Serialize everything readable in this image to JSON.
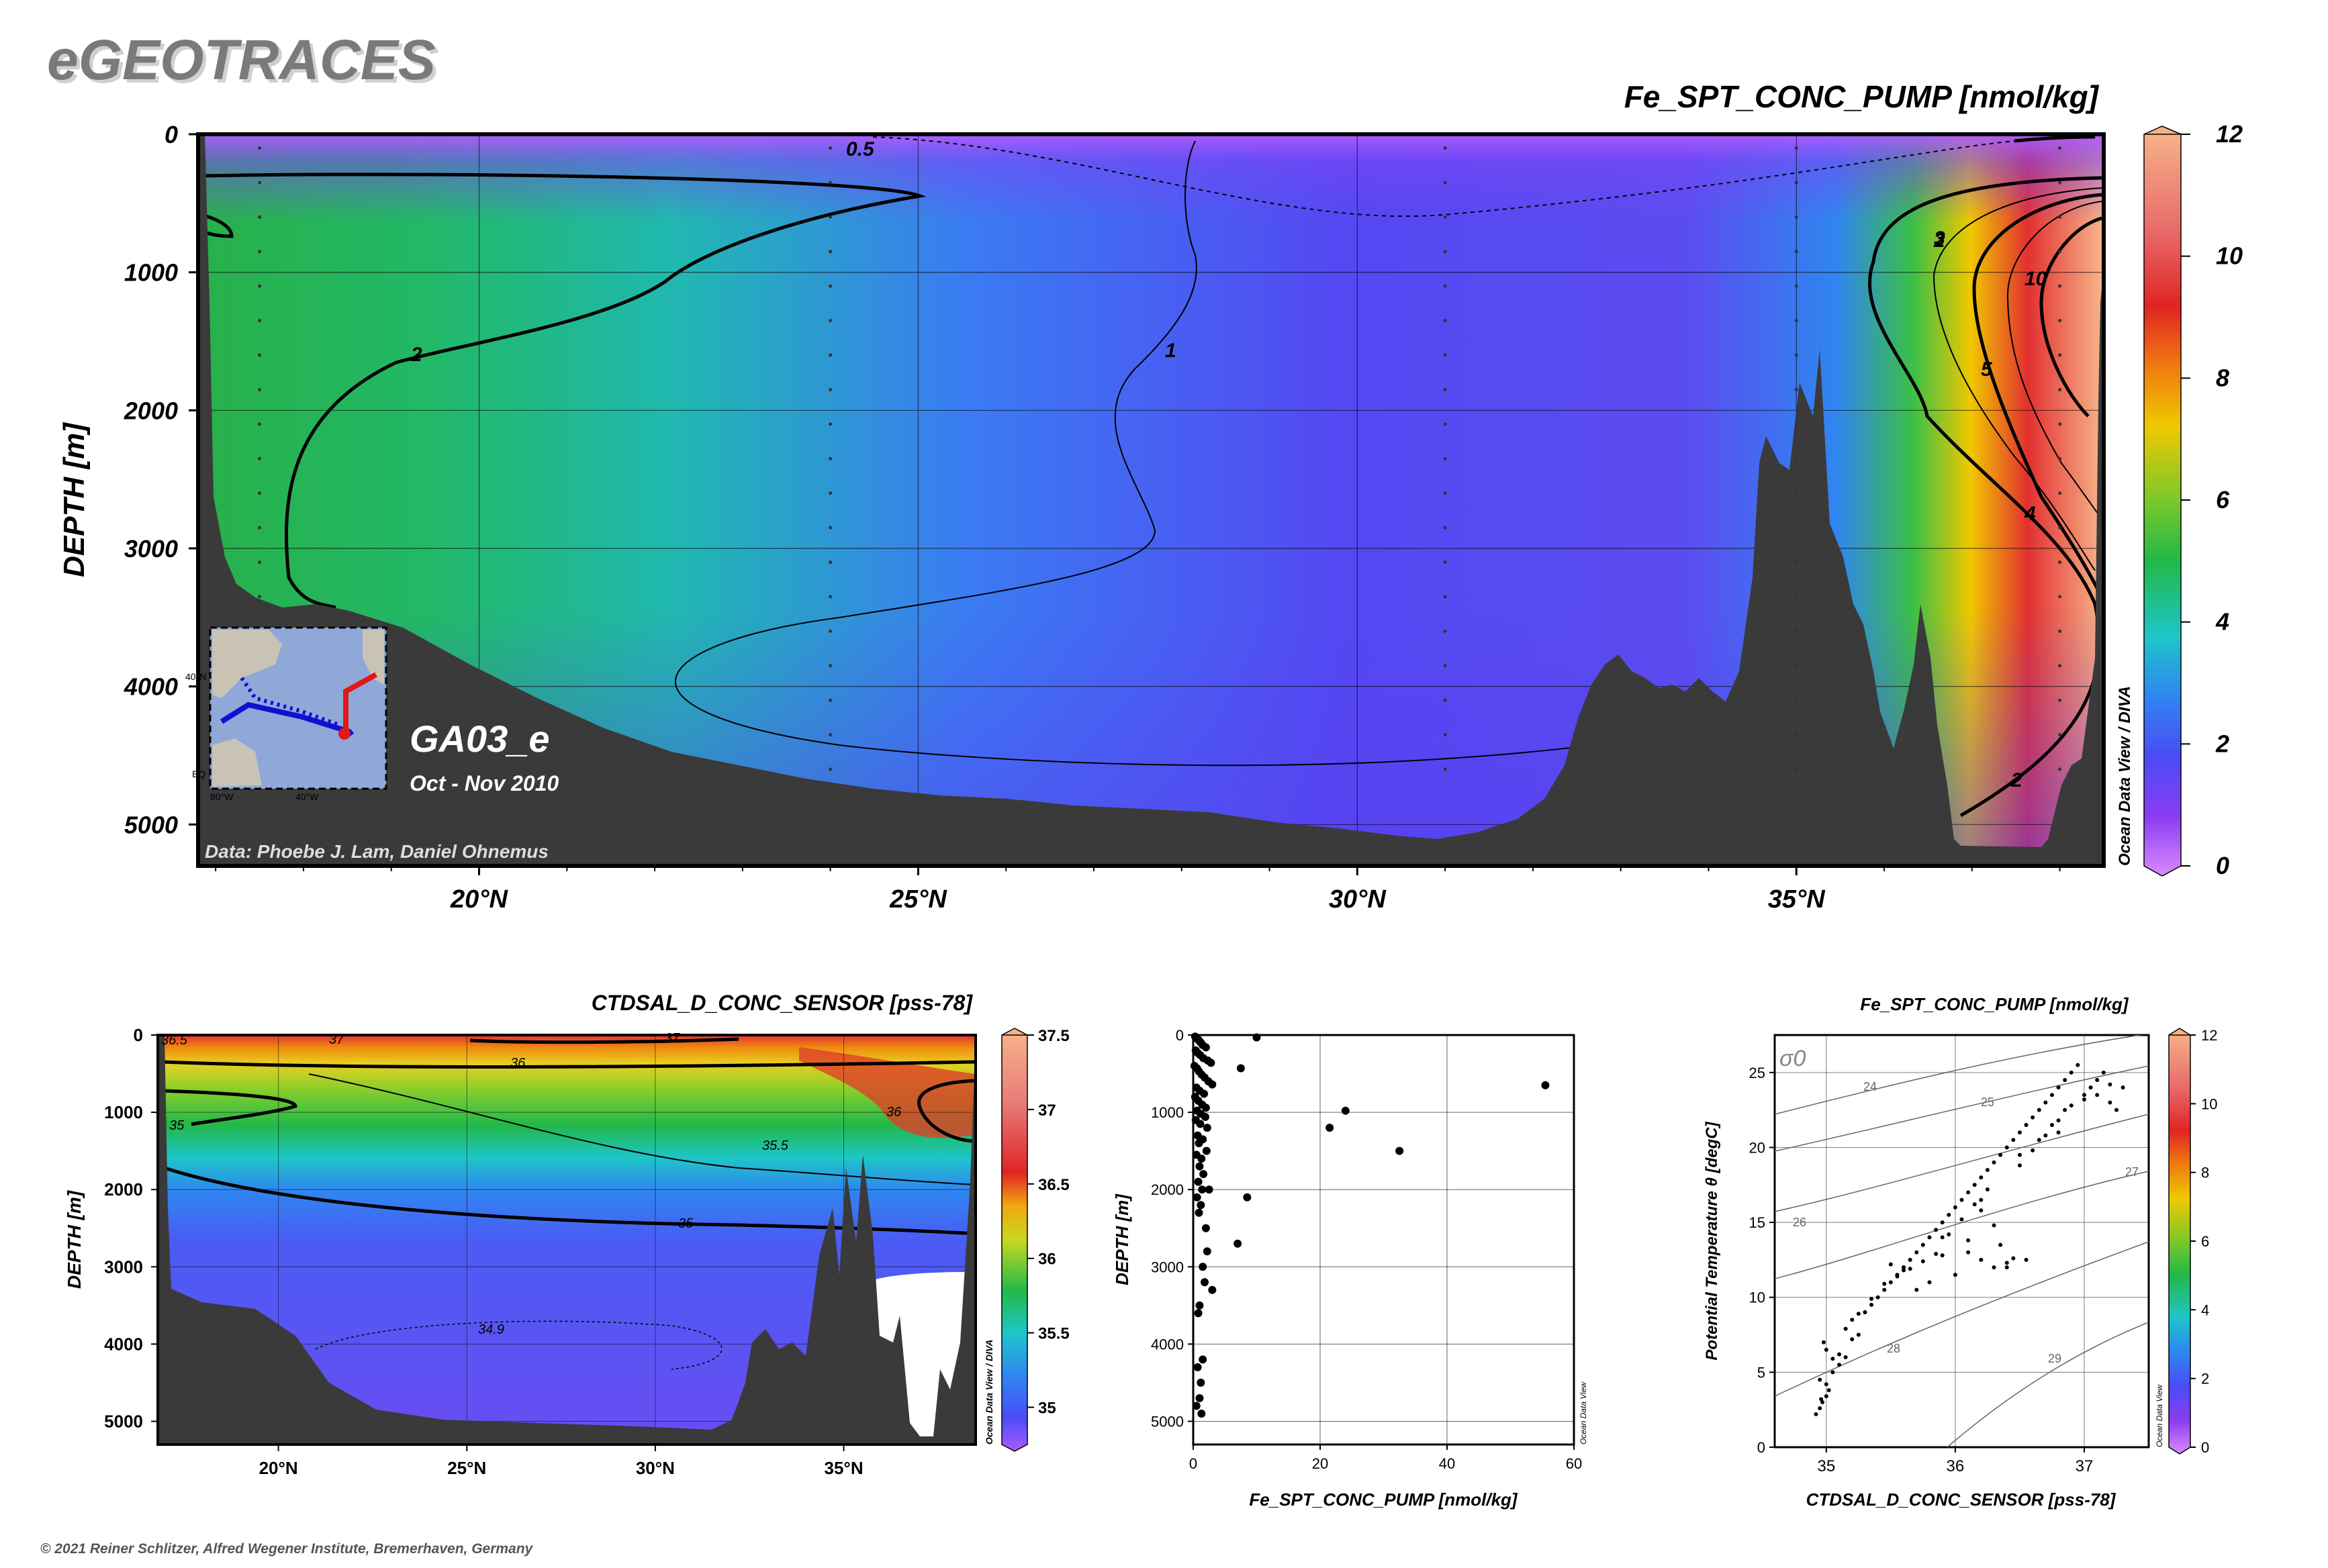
{
  "brand": "eGEOTRACES",
  "copyright": "© 2021 Reiner Schlitzer, Alfred Wegener Institute, Bremerhaven, Germany",
  "odv_credit": "Ocean Data View / DIVA",
  "odv_credit_short": "Ocean Data View",
  "colors": {
    "frame": "#000000",
    "bathymetry": "#3a3a3a",
    "section_line": "#1010d0",
    "section_highlight": "#e01818",
    "map_ocean": "#8fa8d8",
    "map_land": "#c9c3b6"
  },
  "inset_map": {
    "lat_label": "40°N",
    "lat_label_low": "EQ",
    "lon_labels": [
      "80°W",
      "40°W"
    ]
  },
  "chart_data": [
    {
      "id": "main_section",
      "type": "heatmap",
      "title": "Fe_SPT_CONC_PUMP [nmol/kg]",
      "xlabel": "",
      "ylabel": "DEPTH [m]",
      "x_ticks": [
        "20°N",
        "25°N",
        "30°N",
        "35°N"
      ],
      "x_tick_values": [
        20,
        25,
        30,
        35
      ],
      "y_ticks": [
        "0",
        "1000",
        "2000",
        "3000",
        "4000",
        "5000"
      ],
      "y_tick_values": [
        0,
        1000,
        2000,
        3000,
        4000,
        5000
      ],
      "xlim": [
        16.8,
        38.5
      ],
      "ylim": [
        0,
        5300
      ],
      "cruise": "GA03_e",
      "period": "Oct - Nov 2010",
      "data_credit": "Data: Phoebe J. Lam, Daniel Ohnemus",
      "contour_labels": [
        "0.5",
        "1",
        "2",
        "2",
        "2",
        "3",
        "4",
        "5",
        "10"
      ],
      "colorbar": {
        "ticks": [
          "0",
          "2",
          "4",
          "6",
          "8",
          "10",
          "12"
        ],
        "tick_values": [
          0,
          2,
          4,
          6,
          8,
          10,
          12
        ],
        "range": [
          0,
          12
        ]
      }
    },
    {
      "id": "salinity_section",
      "type": "heatmap",
      "title": "CTDSAL_D_CONC_SENSOR [pss-78]",
      "xlabel": "",
      "ylabel": "DEPTH [m]",
      "x_ticks": [
        "20°N",
        "25°N",
        "30°N",
        "35°N"
      ],
      "x_tick_values": [
        20,
        25,
        30,
        35
      ],
      "y_ticks": [
        "0",
        "1000",
        "2000",
        "3000",
        "4000",
        "5000"
      ],
      "y_tick_values": [
        0,
        1000,
        2000,
        3000,
        4000,
        5000
      ],
      "xlim": [
        16.8,
        38.5
      ],
      "ylim": [
        0,
        5300
      ],
      "contour_labels": [
        "36.5",
        "37",
        "37",
        "36",
        "36",
        "35",
        "35.5",
        "35",
        "34.9"
      ],
      "colorbar": {
        "ticks": [
          "35",
          "35.5",
          "36",
          "36.5",
          "37",
          "37.5"
        ],
        "tick_values": [
          35,
          35.5,
          36,
          36.5,
          37,
          37.5
        ],
        "range": [
          34.75,
          37.5
        ]
      }
    },
    {
      "id": "depth_profile",
      "type": "scatter",
      "title": "",
      "xlabel": "Fe_SPT_CONC_PUMP [nmol/kg]",
      "ylabel": "DEPTH [m]",
      "x_ticks": [
        "0",
        "20",
        "40",
        "60"
      ],
      "y_ticks": [
        "0",
        "1000",
        "2000",
        "3000",
        "4000",
        "5000"
      ],
      "xlim": [
        0,
        60
      ],
      "ylim": [
        0,
        5300
      ],
      "x": [
        0.3,
        0.5,
        0.8,
        1.0,
        1.2,
        1.5,
        2.0,
        0.4,
        0.7,
        1.1,
        1.6,
        2.3,
        2.8,
        0.2,
        0.6,
        0.9,
        1.3,
        1.8,
        2.4,
        3.0,
        0.5,
        1.0,
        1.7,
        0.3,
        0.8,
        1.4,
        2.0,
        0.6,
        1.2,
        1.9,
        0.4,
        1.1,
        2.2,
        0.7,
        1.5,
        0.9,
        2.1,
        0.5,
        1.3,
        1.0,
        1.6,
        0.8,
        1.4,
        0.6,
        1.2,
        0.9,
        10.0,
        7.5,
        55.5,
        24.0,
        21.5,
        32.5,
        8.5,
        7.0,
        2.5,
        2.0,
        1.5,
        3.0,
        1.8,
        2.2,
        1.0,
        0.8,
        1.5,
        0.7,
        1.2,
        1.0,
        0.5,
        1.3
      ],
      "y": [
        20,
        40,
        60,
        80,
        100,
        130,
        160,
        200,
        230,
        260,
        300,
        330,
        360,
        400,
        430,
        470,
        510,
        550,
        600,
        640,
        680,
        720,
        760,
        800,
        850,
        900,
        940,
        980,
        1020,
        1060,
        1100,
        1150,
        1200,
        1300,
        1350,
        1400,
        1500,
        1550,
        1600,
        1700,
        1800,
        1900,
        2000,
        2100,
        2200,
        2300,
        30,
        430,
        650,
        980,
        1200,
        1500,
        2100,
        2700,
        2000,
        2500,
        3000,
        3300,
        3200,
        2800,
        3500,
        3600,
        4200,
        4300,
        4500,
        4700,
        4800,
        4900
      ]
    },
    {
      "id": "ts_diagram",
      "type": "scatter",
      "title": "Fe_SPT_CONC_PUMP [nmol/kg]",
      "xlabel": "CTDSAL_D_CONC_SENSOR [pss-78]",
      "ylabel": "Potential Temperature θ [degC]",
      "x_ticks": [
        "35",
        "36",
        "37"
      ],
      "y_ticks": [
        "0",
        "5",
        "10",
        "15",
        "20",
        "25"
      ],
      "xlim": [
        34.6,
        37.5
      ],
      "ylim": [
        0,
        27.5
      ],
      "sigma_label": "σ0",
      "isopycnal_labels": [
        "24",
        "25",
        "26",
        "27",
        "28",
        "29"
      ],
      "colorbar": {
        "ticks": [
          "0",
          "2",
          "4",
          "6",
          "8",
          "10",
          "12"
        ],
        "tick_values": [
          0,
          2,
          4,
          6,
          8,
          10,
          12
        ],
        "range": [
          0,
          12
        ]
      },
      "x": [
        34.92,
        34.95,
        34.97,
        35.0,
        35.02,
        34.95,
        35.05,
        35.1,
        35.0,
        34.98,
        35.15,
        35.2,
        35.3,
        35.25,
        35.4,
        35.35,
        35.5,
        35.55,
        35.6,
        35.45,
        35.65,
        35.7,
        35.75,
        35.8,
        35.85,
        35.9,
        35.95,
        36.0,
        36.05,
        36.1,
        36.15,
        36.2,
        36.25,
        36.3,
        36.35,
        36.4,
        36.45,
        36.5,
        36.55,
        36.6,
        36.65,
        36.7,
        36.75,
        36.8,
        36.85,
        36.9,
        36.95,
        37.0,
        37.05,
        37.1,
        37.15,
        37.2,
        37.25,
        37.3,
        36.2,
        36.3,
        36.4,
        36.1,
        36.0,
        35.9,
        35.8,
        35.7,
        35.6,
        35.5,
        36.35,
        36.45,
        35.95,
        36.05,
        36.15,
        36.25,
        36.5,
        36.6,
        36.7,
        36.8,
        36.9,
        37.0,
        36.3,
        36.2,
        36.1,
        35.85,
        35.75,
        35.65,
        35.55,
        35.45,
        35.35,
        35.25,
        35.15,
        35.05,
        35.2,
        35.1,
        35.0,
        34.96,
        36.4,
        36.55,
        36.65,
        36.75,
        36.85,
        37.1,
        37.2,
        35.3,
        35.6,
        35.9,
        36.2,
        36.5,
        36.8
      ],
      "y": [
        2.2,
        2.6,
        3.0,
        3.4,
        3.8,
        4.5,
        5.0,
        5.5,
        6.5,
        7.0,
        6.0,
        8.5,
        9.0,
        7.5,
        10.0,
        9.5,
        11.0,
        11.5,
        12.0,
        10.5,
        12.5,
        13.0,
        13.5,
        14.0,
        14.5,
        15.0,
        15.5,
        16.0,
        16.5,
        17.0,
        17.5,
        18.0,
        18.5,
        19.0,
        19.5,
        20.0,
        20.5,
        21.0,
        21.5,
        22.0,
        22.5,
        23.0,
        23.5,
        24.0,
        24.5,
        25.0,
        25.5,
        23.5,
        24.0,
        24.5,
        25.0,
        23.0,
        22.5,
        24.0,
        12.5,
        12.0,
        12.3,
        13.0,
        11.5,
        12.8,
        11.0,
        10.5,
        11.8,
        12.2,
        13.5,
        12.6,
        14.2,
        15.2,
        16.2,
        17.2,
        18.8,
        19.8,
        20.8,
        21.8,
        22.8,
        23.2,
        14.8,
        15.8,
        13.8,
        12.9,
        12.4,
        11.9,
        11.4,
        10.9,
        9.9,
        8.9,
        7.9,
        5.9,
        7.2,
        6.2,
        4.2,
        3.2,
        12.0,
        12.5,
        20.5,
        21.5,
        22.5,
        23.5,
        24.2,
        9.0,
        12.0,
        14.0,
        16.5,
        19.5,
        21.0
      ]
    }
  ]
}
